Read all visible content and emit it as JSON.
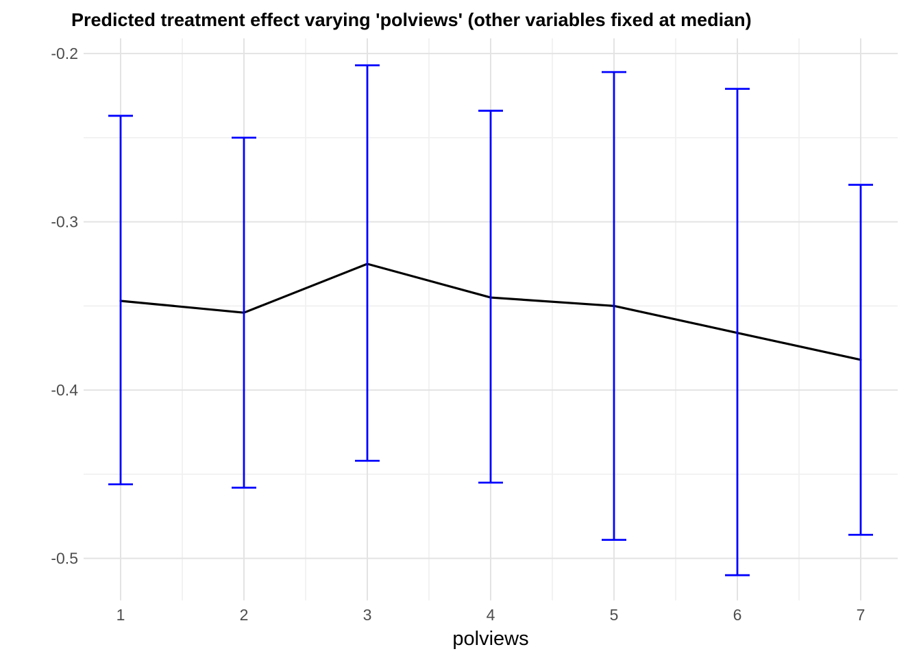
{
  "chart_data": {
    "type": "line",
    "title": "Predicted treatment effect varying 'polviews' (other variables fixed at median)",
    "xlabel": "polviews",
    "ylabel": "",
    "x": [
      1,
      2,
      3,
      4,
      5,
      6,
      7
    ],
    "series": [
      {
        "name": "predicted_treatment_effect",
        "values": [
          -0.347,
          -0.354,
          -0.325,
          -0.345,
          -0.35,
          -0.366,
          -0.382
        ],
        "color": "#000000"
      }
    ],
    "error_bars": {
      "upper": [
        -0.237,
        -0.25,
        -0.207,
        -0.234,
        -0.211,
        -0.221,
        -0.278
      ],
      "lower": [
        -0.456,
        -0.458,
        -0.442,
        -0.455,
        -0.489,
        -0.51,
        -0.486
      ],
      "color": "#0000FF",
      "cap_width_units": 0.2
    },
    "xlim": [
      0.7,
      7.3
    ],
    "ylim": [
      -0.525,
      -0.191
    ],
    "x_ticks": [
      1,
      2,
      3,
      4,
      5,
      6,
      7
    ],
    "x_tick_labels": [
      "1",
      "2",
      "3",
      "4",
      "5",
      "6",
      "7"
    ],
    "x_minor_ticks": [
      1.5,
      2.5,
      3.5,
      4.5,
      5.5,
      6.5
    ],
    "y_ticks": [
      -0.2,
      -0.3,
      -0.4,
      -0.5
    ],
    "y_tick_labels": [
      "-0.2",
      "-0.3",
      "-0.4",
      "-0.5"
    ],
    "y_minor_ticks": [
      -0.25,
      -0.35,
      -0.45
    ],
    "grid": true,
    "legend": false,
    "grid_major_color": "#E3E3E3",
    "grid_minor_color": "#F0F0F0",
    "background_color": "#FFFFFF",
    "tick_label_color": "#4D4D4D"
  }
}
